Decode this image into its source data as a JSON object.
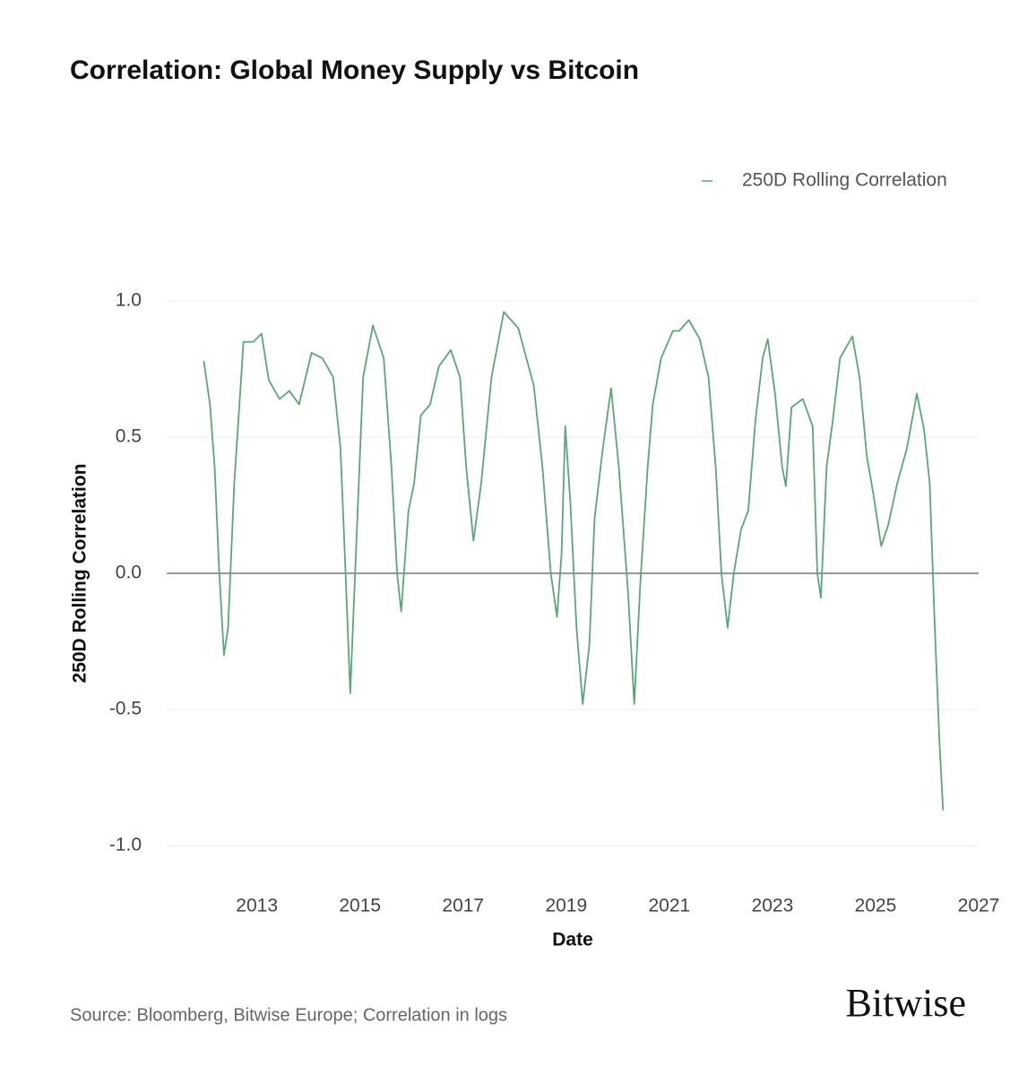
{
  "chart_data": {
    "type": "line",
    "title": "Correlation: Global Money Supply vs Bitcoin",
    "xlabel": "Date",
    "ylabel": "250D Rolling Correlation",
    "source": "Source: Bloomberg, Bitwise Europe; Correlation in logs",
    "brand": "Bitwise",
    "legend": "top-right",
    "grid": true,
    "xlim": [
      2011.25,
      2027
    ],
    "ylim": [
      -1,
      1
    ],
    "xticks": [
      2013,
      2015,
      2017,
      2019,
      2021,
      2023,
      2025,
      2027
    ],
    "yticks": [
      {
        "value": 1,
        "label": "1.0"
      },
      0.5,
      {
        "value": 0,
        "label": "0.0"
      },
      -0.5,
      {
        "value": -1,
        "label": "-1.0"
      }
    ],
    "x": [
      2011.97,
      2012.09,
      2012.18,
      2012.27,
      2012.36,
      2012.44,
      2012.56,
      2012.74,
      2012.93,
      2013.09,
      2013.23,
      2013.44,
      2013.63,
      2013.82,
      2014.06,
      2014.27,
      2014.48,
      2014.62,
      2014.72,
      2014.81,
      2014.92,
      2015.06,
      2015.25,
      2015.46,
      2015.61,
      2015.72,
      2015.8,
      2015.94,
      2016.05,
      2016.18,
      2016.36,
      2016.53,
      2016.76,
      2016.94,
      2017.06,
      2017.2,
      2017.35,
      2017.55,
      2017.79,
      2018.07,
      2018.37,
      2018.54,
      2018.7,
      2018.82,
      2018.91,
      2018.98,
      2019.08,
      2019.2,
      2019.32,
      2019.45,
      2019.55,
      2019.71,
      2019.87,
      2020.02,
      2020.2,
      2020.32,
      2020.44,
      2020.58,
      2020.68,
      2020.84,
      2021.07,
      2021.19,
      2021.38,
      2021.59,
      2021.76,
      2021.9,
      2022.01,
      2022.13,
      2022.25,
      2022.39,
      2022.53,
      2022.67,
      2022.81,
      2022.91,
      2023.05,
      2023.19,
      2023.26,
      2023.37,
      2023.59,
      2023.78,
      2023.87,
      2023.94,
      2024.05,
      2024.17,
      2024.31,
      2024.55,
      2024.69,
      2024.83,
      2024.95,
      2025.11,
      2025.25,
      2025.42,
      2025.61,
      2025.8,
      2025.94,
      2026.05,
      2026.15,
      2026.24,
      2026.31
    ],
    "series": [
      {
        "name": "250D Rolling Correlation",
        "color": "#5aa67a",
        "values": [
          0.78,
          0.62,
          0.39,
          0.0,
          -0.3,
          -0.2,
          0.33,
          0.85,
          0.85,
          0.88,
          0.71,
          0.64,
          0.67,
          0.62,
          0.81,
          0.79,
          0.72,
          0.46,
          0.0,
          -0.44,
          0.07,
          0.72,
          0.91,
          0.79,
          0.39,
          0.0,
          -0.14,
          0.23,
          0.33,
          0.58,
          0.62,
          0.76,
          0.82,
          0.72,
          0.39,
          0.12,
          0.33,
          0.72,
          0.96,
          0.9,
          0.69,
          0.39,
          0.0,
          -0.16,
          0.07,
          0.54,
          0.26,
          -0.2,
          -0.48,
          -0.26,
          0.2,
          0.46,
          0.68,
          0.39,
          -0.07,
          -0.48,
          -0.03,
          0.39,
          0.62,
          0.79,
          0.89,
          0.89,
          0.93,
          0.86,
          0.72,
          0.39,
          0.0,
          -0.2,
          0.0,
          0.16,
          0.23,
          0.56,
          0.79,
          0.86,
          0.66,
          0.39,
          0.32,
          0.61,
          0.64,
          0.54,
          0.0,
          -0.09,
          0.39,
          0.56,
          0.79,
          0.87,
          0.72,
          0.43,
          0.3,
          0.1,
          0.18,
          0.33,
          0.46,
          0.66,
          0.53,
          0.33,
          -0.2,
          -0.62,
          -0.87
        ]
      }
    ]
  }
}
